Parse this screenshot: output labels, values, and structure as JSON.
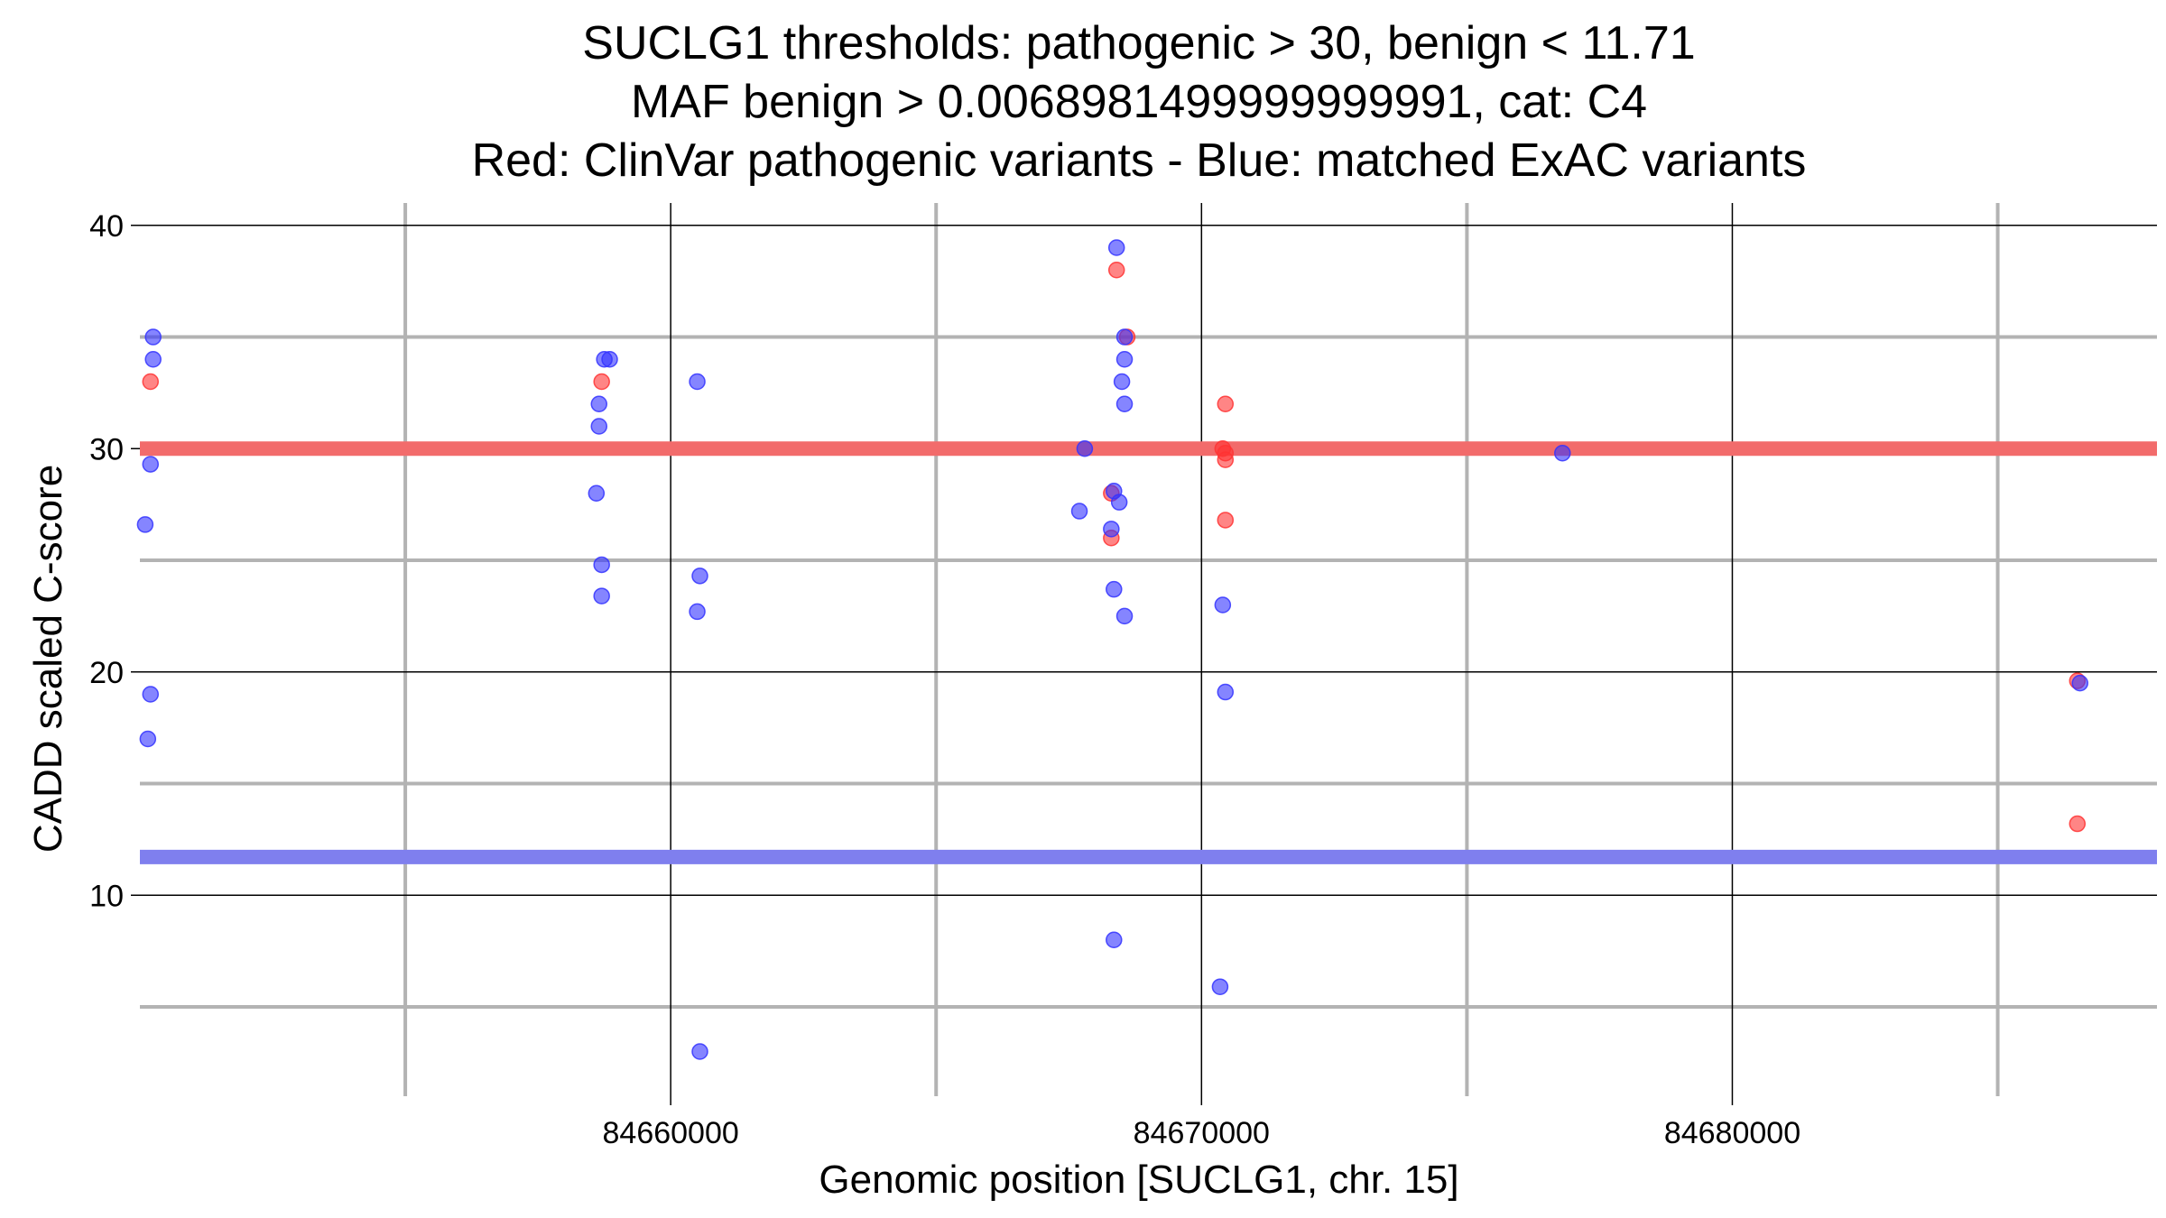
{
  "chart_data": {
    "type": "scatter",
    "title_lines": [
      "SUCLG1 thresholds: pathogenic > 30, benign < 11.71",
      "MAF benign > 0.0068981499999999991, cat: C4",
      "Red: ClinVar pathogenic variants - Blue: matched ExAC variants"
    ],
    "xlabel": "Genomic position [SUCLG1, chr. 15]",
    "ylabel": "CADD scaled C-score",
    "xlim": [
      84650000,
      84688000
    ],
    "ylim": [
      1,
      41
    ],
    "x_ticks": [
      84660000,
      84670000,
      84680000
    ],
    "x_tick_labels": [
      "84660000",
      "84670000",
      "84680000"
    ],
    "x_minor_gridlines": [
      84655000,
      84665000,
      84675000,
      84685000
    ],
    "y_ticks": [
      10,
      20,
      30,
      40
    ],
    "y_tick_labels": [
      "10",
      "20",
      "30",
      "40"
    ],
    "y_minor_gridlines": [
      5,
      15,
      25,
      35
    ],
    "threshold_lines": [
      {
        "name": "pathogenic threshold",
        "y": 30,
        "color": "#f26b6b"
      },
      {
        "name": "benign threshold",
        "y": 11.71,
        "color": "#7f7fee"
      }
    ],
    "series": [
      {
        "name": "ClinVar pathogenic variants",
        "color": "#ff3333",
        "points": [
          {
            "x": 84650200,
            "y": 33
          },
          {
            "x": 84658700,
            "y": 33
          },
          {
            "x": 84668400,
            "y": 38
          },
          {
            "x": 84668600,
            "y": 35
          },
          {
            "x": 84668300,
            "y": 28
          },
          {
            "x": 84668300,
            "y": 26
          },
          {
            "x": 84670450,
            "y": 32
          },
          {
            "x": 84670400,
            "y": 30
          },
          {
            "x": 84670450,
            "y": 29.8
          },
          {
            "x": 84670450,
            "y": 29.5
          },
          {
            "x": 84670450,
            "y": 26.8
          },
          {
            "x": 84686500,
            "y": 19.6
          },
          {
            "x": 84686500,
            "y": 13.2
          }
        ]
      },
      {
        "name": "matched ExAC variants",
        "color": "#3333ff",
        "points": [
          {
            "x": 84650250,
            "y": 35
          },
          {
            "x": 84650250,
            "y": 34
          },
          {
            "x": 84650200,
            "y": 29.3
          },
          {
            "x": 84650100,
            "y": 26.6
          },
          {
            "x": 84650200,
            "y": 19
          },
          {
            "x": 84650150,
            "y": 17
          },
          {
            "x": 84658850,
            "y": 34
          },
          {
            "x": 84658750,
            "y": 34
          },
          {
            "x": 84658650,
            "y": 32
          },
          {
            "x": 84658650,
            "y": 31
          },
          {
            "x": 84658600,
            "y": 28
          },
          {
            "x": 84658700,
            "y": 24.8
          },
          {
            "x": 84658700,
            "y": 23.4
          },
          {
            "x": 84660500,
            "y": 33
          },
          {
            "x": 84660550,
            "y": 24.3
          },
          {
            "x": 84660500,
            "y": 22.7
          },
          {
            "x": 84660550,
            "y": 3
          },
          {
            "x": 84668400,
            "y": 39
          },
          {
            "x": 84668550,
            "y": 35
          },
          {
            "x": 84668550,
            "y": 34
          },
          {
            "x": 84668500,
            "y": 33
          },
          {
            "x": 84668550,
            "y": 32
          },
          {
            "x": 84667800,
            "y": 30
          },
          {
            "x": 84668350,
            "y": 28.1
          },
          {
            "x": 84668450,
            "y": 27.6
          },
          {
            "x": 84667700,
            "y": 27.2
          },
          {
            "x": 84668300,
            "y": 26.4
          },
          {
            "x": 84668350,
            "y": 23.7
          },
          {
            "x": 84668550,
            "y": 22.5
          },
          {
            "x": 84668350,
            "y": 8
          },
          {
            "x": 84670400,
            "y": 23
          },
          {
            "x": 84670450,
            "y": 19.1
          },
          {
            "x": 84670350,
            "y": 5.9
          },
          {
            "x": 84676800,
            "y": 29.8
          },
          {
            "x": 84686550,
            "y": 19.5
          }
        ]
      }
    ]
  }
}
